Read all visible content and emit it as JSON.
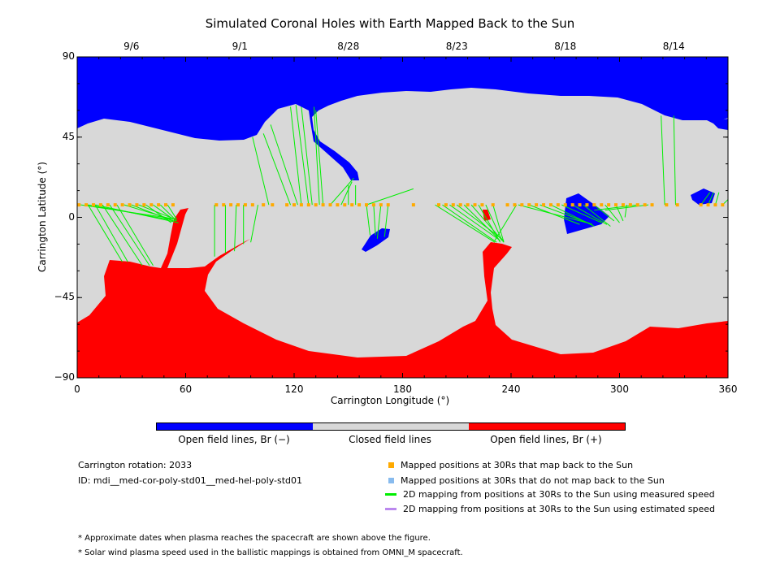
{
  "chart_data": {
    "type": "map",
    "title": "Simulated Coronal Holes with Earth Mapped Back to the Sun",
    "xlabel": "Carrington Longitude (°)",
    "ylabel": "Carrington Latitude (°)",
    "xlim": [
      0,
      360
    ],
    "ylim": [
      -90,
      90
    ],
    "x_ticks": [
      "0",
      "60",
      "120",
      "180",
      "240",
      "300",
      "360"
    ],
    "y_ticks": [
      "90",
      "45",
      "0",
      "−45",
      "−90"
    ],
    "top_dates": [
      {
        "label": "9/6",
        "lon": 30
      },
      {
        "label": "9/1",
        "lon": 90
      },
      {
        "label": "8/28",
        "lon": 150
      },
      {
        "label": "8/23",
        "lon": 210
      },
      {
        "label": "8/18",
        "lon": 270
      },
      {
        "label": "8/14",
        "lon": 330
      }
    ],
    "colors": {
      "neg": "#0000ff",
      "closed": "#d8d8d8",
      "pos": "#ff0000",
      "mapped": "#ffaa00",
      "unmapped": "#88bbee",
      "measured": "#00ee00",
      "estimated": "#bb88ee"
    },
    "mapped_lat": 7,
    "mapped_points_lon": [
      1,
      5,
      9,
      13,
      17,
      21,
      25,
      29,
      33,
      37,
      41,
      45,
      49,
      53,
      77,
      81,
      85,
      89,
      93,
      97,
      103,
      108,
      116,
      120,
      124,
      128,
      132,
      136,
      140,
      144,
      148,
      152,
      156,
      160,
      164,
      168,
      172,
      186,
      200,
      204,
      208,
      212,
      216,
      220,
      224,
      230,
      238,
      242,
      246,
      250,
      254,
      258,
      262,
      266,
      270,
      274,
      278,
      282,
      286,
      290,
      294,
      298,
      302,
      306,
      310,
      314,
      318,
      326,
      332,
      345,
      349,
      353,
      357
    ],
    "mapping_lines": [
      {
        "from": [
          2,
          7
        ],
        "to": [
          55,
          -1
        ]
      },
      {
        "from": [
          6,
          7
        ],
        "to": [
          55,
          -2
        ]
      },
      {
        "from": [
          10,
          7
        ],
        "to": [
          56,
          -3
        ]
      },
      {
        "from": [
          6,
          7
        ],
        "to": [
          25,
          -25
        ]
      },
      {
        "from": [
          10,
          7
        ],
        "to": [
          28,
          -25
        ]
      },
      {
        "from": [
          14,
          7
        ],
        "to": [
          36,
          -27
        ]
      },
      {
        "from": [
          18,
          7
        ],
        "to": [
          40,
          -27
        ]
      },
      {
        "from": [
          22,
          7
        ],
        "to": [
          42,
          -27
        ]
      },
      {
        "from": [
          26,
          7
        ],
        "to": [
          52,
          -1
        ]
      },
      {
        "from": [
          30,
          7
        ],
        "to": [
          53,
          -2
        ]
      },
      {
        "from": [
          34,
          7
        ],
        "to": [
          54,
          -1
        ]
      },
      {
        "from": [
          38,
          7
        ],
        "to": [
          52,
          -3
        ]
      },
      {
        "from": [
          42,
          7
        ],
        "to": [
          53,
          -1
        ]
      },
      {
        "from": [
          46,
          7
        ],
        "to": [
          55,
          -2
        ]
      },
      {
        "from": [
          50,
          7
        ],
        "to": [
          55,
          -1
        ]
      },
      {
        "from": [
          76,
          7
        ],
        "to": [
          76,
          -22
        ]
      },
      {
        "from": [
          82,
          7
        ],
        "to": [
          82,
          -20
        ]
      },
      {
        "from": [
          88,
          7
        ],
        "to": [
          87,
          -19
        ]
      },
      {
        "from": [
          92,
          7
        ],
        "to": [
          92,
          -15
        ]
      },
      {
        "from": [
          100,
          7
        ],
        "to": [
          96,
          -14
        ]
      },
      {
        "from": [
          106,
          7
        ],
        "to": [
          97,
          45
        ]
      },
      {
        "from": [
          118,
          7
        ],
        "to": [
          103,
          47
        ]
      },
      {
        "from": [
          122,
          7
        ],
        "to": [
          107,
          52
        ]
      },
      {
        "from": [
          124,
          7
        ],
        "to": [
          118,
          62
        ]
      },
      {
        "from": [
          128,
          7
        ],
        "to": [
          121,
          63
        ]
      },
      {
        "from": [
          130,
          7
        ],
        "to": [
          124,
          62
        ]
      },
      {
        "from": [
          134,
          7
        ],
        "to": [
          131,
          62
        ]
      },
      {
        "from": [
          136,
          7
        ],
        "to": [
          132,
          60
        ]
      },
      {
        "from": [
          140,
          7
        ],
        "to": [
          153,
          22
        ]
      },
      {
        "from": [
          146,
          7
        ],
        "to": [
          152,
          20
        ]
      },
      {
        "from": [
          150,
          7
        ],
        "to": [
          150,
          18
        ]
      },
      {
        "from": [
          154,
          7
        ],
        "to": [
          154,
          18
        ]
      },
      {
        "from": [
          160,
          7
        ],
        "to": [
          162,
          -10
        ]
      },
      {
        "from": [
          164,
          7
        ],
        "to": [
          165,
          -10
        ]
      },
      {
        "from": [
          168,
          7
        ],
        "to": [
          166,
          -12
        ]
      },
      {
        "from": [
          172,
          7
        ],
        "to": [
          170,
          -11
        ]
      },
      {
        "from": [
          160,
          7
        ],
        "to": [
          186,
          16
        ]
      },
      {
        "from": [
          198,
          7
        ],
        "to": [
          231,
          -14
        ]
      },
      {
        "from": [
          202,
          7
        ],
        "to": [
          232,
          -14
        ]
      },
      {
        "from": [
          206,
          7
        ],
        "to": [
          234,
          -13
        ]
      },
      {
        "from": [
          210,
          7
        ],
        "to": [
          236,
          -13
        ]
      },
      {
        "from": [
          214,
          7
        ],
        "to": [
          233,
          -12
        ]
      },
      {
        "from": [
          218,
          7
        ],
        "to": [
          236,
          -14
        ]
      },
      {
        "from": [
          222,
          7
        ],
        "to": [
          234,
          -14
        ]
      },
      {
        "from": [
          226,
          7
        ],
        "to": [
          235,
          -13
        ]
      },
      {
        "from": [
          230,
          7
        ],
        "to": [
          236,
          -14
        ]
      },
      {
        "from": [
          243,
          7
        ],
        "to": [
          231,
          -13
        ]
      },
      {
        "from": [
          244,
          7
        ],
        "to": [
          282,
          -3
        ]
      },
      {
        "from": [
          250,
          7
        ],
        "to": [
          278,
          -4
        ]
      },
      {
        "from": [
          256,
          7
        ],
        "to": [
          285,
          -4
        ]
      },
      {
        "from": [
          262,
          7
        ],
        "to": [
          286,
          -5
        ]
      },
      {
        "from": [
          268,
          7
        ],
        "to": [
          290,
          -3
        ]
      },
      {
        "from": [
          274,
          7
        ],
        "to": [
          293,
          -4
        ]
      },
      {
        "from": [
          280,
          7
        ],
        "to": [
          295,
          -5
        ]
      },
      {
        "from": [
          286,
          7
        ],
        "to": [
          297,
          -2
        ]
      },
      {
        "from": [
          292,
          7
        ],
        "to": [
          300,
          -3
        ]
      },
      {
        "from": [
          298,
          7
        ],
        "to": [
          302,
          -2
        ]
      },
      {
        "from": [
          304,
          7
        ],
        "to": [
          303,
          0
        ]
      },
      {
        "from": [
          310,
          7
        ],
        "to": [
          286,
          4
        ]
      },
      {
        "from": [
          316,
          7
        ],
        "to": [
          292,
          4
        ]
      },
      {
        "from": [
          325,
          7
        ],
        "to": [
          323,
          57
        ]
      },
      {
        "from": [
          331,
          7
        ],
        "to": [
          330,
          57
        ]
      },
      {
        "from": [
          345,
          7
        ],
        "to": [
          350,
          14
        ]
      },
      {
        "from": [
          349,
          7
        ],
        "to": [
          352,
          14
        ]
      },
      {
        "from": [
          353,
          7
        ],
        "to": [
          355,
          14
        ]
      },
      {
        "from": [
          357,
          7
        ],
        "to": [
          360,
          10
        ]
      }
    ]
  },
  "legend": {
    "colorbar": [
      "Open field lines, Br (−)",
      "Closed field lines",
      "Open field lines, Br (+)"
    ],
    "items": [
      {
        "label": "Mapped positions at 30Rs that map back to the Sun",
        "kind": "square",
        "color": "#ffaa00"
      },
      {
        "label": "Mapped positions at 30Rs that do not map back to the Sun",
        "kind": "square",
        "color": "#88bbee"
      },
      {
        "label": "2D mapping from positions at 30Rs to the Sun using measured speed",
        "kind": "line",
        "color": "#00ee00"
      },
      {
        "label": "2D mapping from positions at 30Rs to the Sun using estimated speed",
        "kind": "line",
        "color": "#bb88ee"
      }
    ]
  },
  "info": {
    "rotation": "Carrington rotation: 2033",
    "id": "ID: mdi__med-cor-poly-std01__med-hel-poly-std01"
  },
  "notes": [
    "* Approximate dates when plasma reaches the spacecraft are shown above the figure.",
    "* Solar wind plasma speed used in the ballistic mappings is obtained from OMNI_M spacecraft."
  ]
}
